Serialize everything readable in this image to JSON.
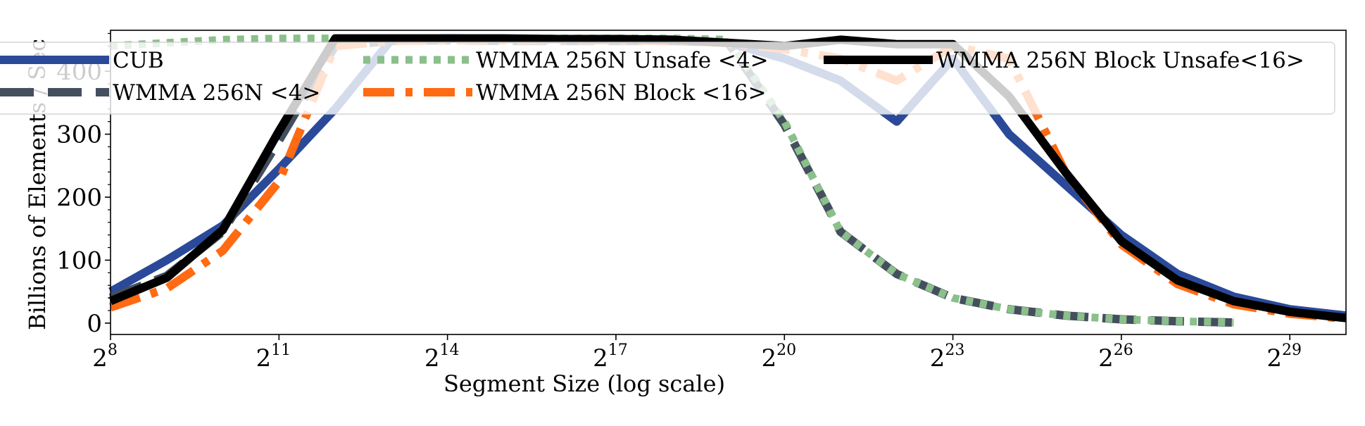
{
  "chart_data": {
    "type": "line",
    "title": "",
    "xlabel": "Segment Size (log scale)",
    "ylabel": "Billions of Elements / Sec",
    "x_scale": "log2",
    "xlim_exponent": [
      8,
      30
    ],
    "x_ticks": [
      {
        "base": "2",
        "exp": "8"
      },
      {
        "base": "2",
        "exp": "11"
      },
      {
        "base": "2",
        "exp": "14"
      },
      {
        "base": "2",
        "exp": "17"
      },
      {
        "base": "2",
        "exp": "20"
      },
      {
        "base": "2",
        "exp": "23"
      },
      {
        "base": "2",
        "exp": "26"
      },
      {
        "base": "2",
        "exp": "29"
      }
    ],
    "y_ticks": [
      "0",
      "100",
      "200",
      "300",
      "400"
    ],
    "ylim": [
      -18,
      465
    ],
    "grid": false,
    "legend_position": "top",
    "x_exponent": [
      8,
      9,
      10,
      11,
      12,
      13,
      14,
      15,
      16,
      17,
      18,
      19,
      20,
      21,
      22,
      23,
      24,
      25,
      26,
      27,
      28,
      29,
      30
    ],
    "series": [
      {
        "name": "CUB",
        "color": "#2a4a99",
        "dash": "solid",
        "values": [
          50,
          100,
          155,
          245,
          340,
          450,
          452,
          451,
          451,
          450,
          448,
          445,
          420,
          385,
          320,
          420,
          300,
          220,
          140,
          78,
          42,
          22,
          12
        ]
      },
      {
        "name": "WMMA 256N <4>",
        "color": "#444f5e",
        "dash": "long-dash",
        "values": [
          40,
          75,
          145,
          290,
          440,
          448,
          449,
          448,
          448,
          448,
          448,
          445,
          315,
          145,
          78,
          40,
          22,
          12,
          6,
          3,
          1,
          null,
          null
        ]
      },
      {
        "name": "WMMA 256N Unsafe <4>",
        "color": "#8bbf8b",
        "dash": "dotted",
        "values": [
          440,
          445,
          450,
          452,
          452,
          452,
          452,
          452,
          452,
          452,
          452,
          450,
          320,
          145,
          78,
          40,
          22,
          12,
          6,
          3,
          1,
          null,
          null
        ]
      },
      {
        "name": "WMMA 256N Block <16>",
        "color": "#ff6a13",
        "dash": "dash-dot",
        "values": [
          25,
          55,
          115,
          225,
          440,
          448,
          449,
          449,
          449,
          449,
          448,
          445,
          435,
          420,
          385,
          440,
          420,
          240,
          125,
          62,
          30,
          15,
          7
        ]
      },
      {
        "name": "WMMA 256N Block Unsafe<16>",
        "color": "#000000",
        "dash": "solid",
        "values": [
          35,
          72,
          148,
          305,
          452,
          452,
          452,
          452,
          451,
          451,
          450,
          445,
          440,
          450,
          443,
          443,
          360,
          240,
          130,
          68,
          35,
          18,
          8
        ]
      }
    ]
  }
}
